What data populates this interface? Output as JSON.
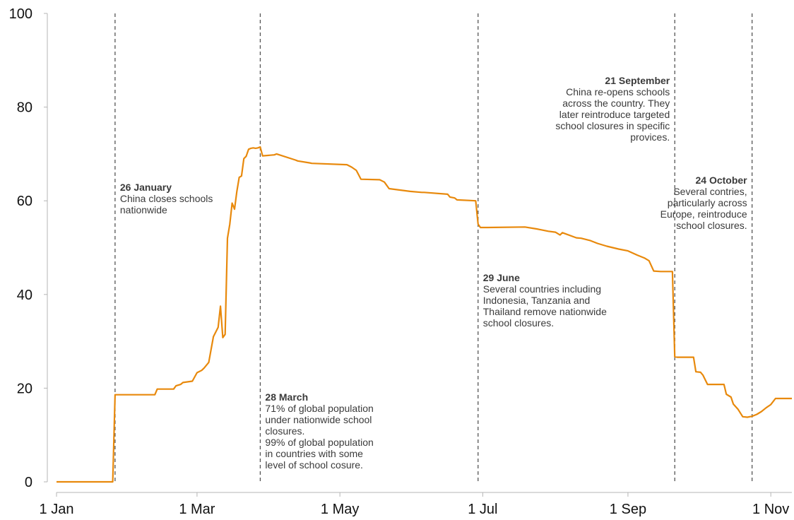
{
  "chart_data": {
    "type": "line",
    "title": "",
    "xlabel": "",
    "ylabel": "",
    "ylim": [
      0,
      100
    ],
    "yticks": [
      0,
      20,
      40,
      60,
      80,
      100
    ],
    "xlim": [
      "2020-01-01",
      "2020-11-10"
    ],
    "xticks": [
      {
        "date": "2020-01-01",
        "label": "1 Jan"
      },
      {
        "date": "2020-03-01",
        "label": "1 Mar"
      },
      {
        "date": "2020-05-01",
        "label": "1 May"
      },
      {
        "date": "2020-07-01",
        "label": "1 Jul"
      },
      {
        "date": "2020-09-01",
        "label": "1 Sep"
      },
      {
        "date": "2020-11-01",
        "label": "1 Nov"
      }
    ],
    "grid": false,
    "colors": {
      "line": "#e8890c",
      "event_line": "#555555",
      "text": "#3a3a3a"
    },
    "series": [
      {
        "x": [
          "2020-01-01",
          "2020-01-25",
          "2020-01-26",
          "2020-02-12",
          "2020-02-13",
          "2020-02-20",
          "2020-02-21",
          "2020-02-23",
          "2020-02-24",
          "2020-02-28",
          "2020-03-01",
          "2020-03-03",
          "2020-03-04",
          "2020-03-06",
          "2020-03-08",
          "2020-03-10",
          "2020-03-11",
          "2020-03-12",
          "2020-03-13",
          "2020-03-14",
          "2020-03-15",
          "2020-03-16",
          "2020-03-17",
          "2020-03-18",
          "2020-03-19",
          "2020-03-20",
          "2020-03-21",
          "2020-03-22",
          "2020-03-23",
          "2020-03-24",
          "2020-03-25",
          "2020-03-26",
          "2020-03-27",
          "2020-03-28",
          "2020-03-29",
          "2020-04-03",
          "2020-04-04",
          "2020-04-12",
          "2020-04-13",
          "2020-04-18",
          "2020-04-19",
          "2020-05-04",
          "2020-05-06",
          "2020-05-08",
          "2020-05-10",
          "2020-05-18",
          "2020-05-20",
          "2020-05-22",
          "2020-05-31",
          "2020-06-05",
          "2020-06-06",
          "2020-06-16",
          "2020-06-17",
          "2020-06-19",
          "2020-06-20",
          "2020-06-28",
          "2020-06-29",
          "2020-06-30",
          "2020-07-03",
          "2020-07-19",
          "2020-07-24",
          "2020-07-26",
          "2020-07-29",
          "2020-08-01",
          "2020-08-03",
          "2020-08-04",
          "2020-08-10",
          "2020-08-12",
          "2020-08-16",
          "2020-08-19",
          "2020-08-23",
          "2020-08-28",
          "2020-09-01",
          "2020-09-05",
          "2020-09-08",
          "2020-09-10",
          "2020-09-12",
          "2020-09-15",
          "2020-09-20",
          "2020-09-21",
          "2020-09-22",
          "2020-09-29",
          "2020-09-30",
          "2020-10-02",
          "2020-10-03",
          "2020-10-05",
          "2020-10-06",
          "2020-10-12",
          "2020-10-13",
          "2020-10-15",
          "2020-10-16",
          "2020-10-18",
          "2020-10-20",
          "2020-10-22",
          "2020-10-24",
          "2020-10-26",
          "2020-10-28",
          "2020-10-30",
          "2020-11-01",
          "2020-11-03",
          "2020-11-10"
        ],
        "y": [
          0,
          0,
          18.6,
          18.6,
          19.8,
          19.8,
          20.5,
          20.8,
          21.2,
          21.5,
          23.3,
          23.8,
          24.3,
          25.5,
          31,
          33,
          37.5,
          30.8,
          31.5,
          52,
          55,
          59.5,
          58.2,
          62,
          65,
          65.3,
          69,
          69.5,
          71,
          71.2,
          71.3,
          71.2,
          71.3,
          71.5,
          69.6,
          69.8,
          70,
          68.7,
          68.5,
          68.1,
          68,
          67.7,
          67.2,
          66.5,
          64.6,
          64.5,
          64,
          62.6,
          62,
          61.8,
          61.8,
          61.4,
          60.8,
          60.6,
          60.2,
          60,
          55,
          54.3,
          54.3,
          54.4,
          54,
          53.8,
          53.5,
          53.3,
          52.7,
          53.2,
          52.1,
          52,
          51.5,
          50.9,
          50.3,
          49.7,
          49.3,
          48.4,
          47.8,
          47.2,
          45,
          44.9,
          44.9,
          26.7,
          26.6,
          26.6,
          23.5,
          23.4,
          22.8,
          20.8,
          20.8,
          20.8,
          18.7,
          18.1,
          16.6,
          15.5,
          13.9,
          13.8,
          14,
          14.4,
          15,
          15.8,
          16.5,
          17.8,
          17.8
        ]
      }
    ],
    "events": [
      {
        "date": "2020-01-26",
        "title": "26 January",
        "lines": [
          "China closes schools",
          "nationwide"
        ],
        "align": "left"
      },
      {
        "date": "2020-03-28",
        "title": "28 March",
        "lines": [
          "71% of global population",
          "under nationwide school",
          "closures.",
          "99% of global population",
          "in countries with some",
          "level of school cosure."
        ],
        "align": "left"
      },
      {
        "date": "2020-06-29",
        "title": "29 June",
        "lines": [
          "Several countries including",
          "Indonesia, Tanzania and",
          "Thailand remove nationwide",
          "school closures."
        ],
        "align": "left"
      },
      {
        "date": "2020-09-21",
        "title": "21 September",
        "lines": [
          "China re-opens schools",
          "across the country. They",
          "later reintroduce targeted",
          "school closures in specific",
          "provices."
        ],
        "align": "right"
      },
      {
        "date": "2020-10-24",
        "title": "24 October",
        "lines": [
          "Several contries,",
          "particularly across",
          "Europe, reintroduce",
          "school closures."
        ],
        "align": "right"
      }
    ]
  }
}
